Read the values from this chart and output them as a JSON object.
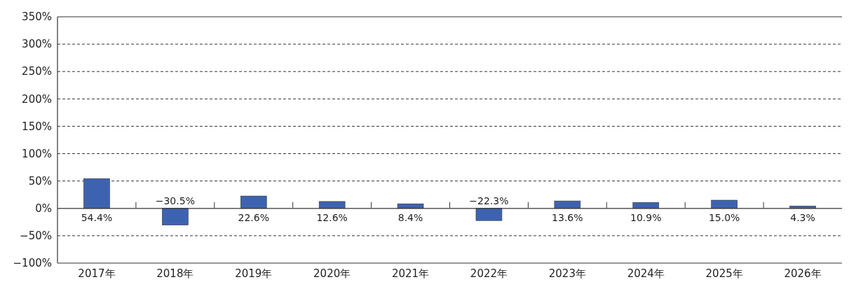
{
  "chart_data": {
    "type": "bar",
    "categories": [
      "2017年",
      "2018年",
      "2019年",
      "2020年",
      "2021年",
      "2022年",
      "2023年",
      "2024年",
      "2025年",
      "2026年"
    ],
    "values": [
      54.4,
      -30.5,
      22.6,
      12.6,
      8.4,
      -22.3,
      13.6,
      10.9,
      15.0,
      4.3
    ],
    "value_labels": [
      "54.4%",
      "−30.5%",
      "22.6%",
      "12.6%",
      "8.4%",
      "−22.3%",
      "13.6%",
      "10.9%",
      "15.0%",
      "4.3%"
    ],
    "color": "#3d63b0",
    "ylim": [
      -100,
      350
    ],
    "yticks": [
      {
        "value": -100,
        "label": "−100%"
      },
      {
        "value": -50,
        "label": "−50%"
      },
      {
        "value": 0,
        "label": "0%"
      },
      {
        "value": 50,
        "label": "50%"
      },
      {
        "value": 100,
        "label": "100%"
      },
      {
        "value": 150,
        "label": "150%"
      },
      {
        "value": 200,
        "label": "200%"
      },
      {
        "value": 250,
        "label": "250%"
      },
      {
        "value": 300,
        "label": "300%"
      },
      {
        "value": 350,
        "label": "350%"
      }
    ],
    "grid": "y"
  }
}
